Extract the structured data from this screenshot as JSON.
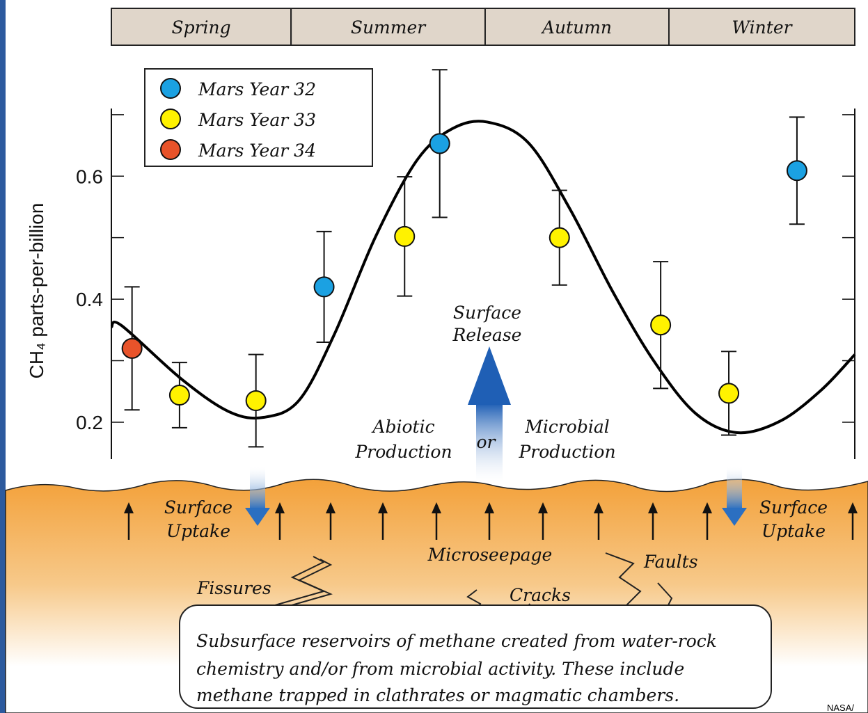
{
  "chart_data": {
    "type": "scatter",
    "seasons": [
      "Spring",
      "Summer",
      "Autumn",
      "Winter"
    ],
    "season_edges": [
      0,
      87,
      181,
      270,
      360
    ],
    "ylabel": "CH₄ parts-per-billion",
    "xlim": [
      0,
      360
    ],
    "ylim": [
      0.14,
      0.71
    ],
    "yticks": [
      0.2,
      0.4,
      0.6
    ],
    "yminor": [
      0.3,
      0.5,
      0.7
    ],
    "series": [
      {
        "name": "Mars Year 32",
        "color": "#1ba1e2",
        "x": [
          103,
          159,
          332
        ],
        "values": [
          0.42,
          0.653,
          0.609
        ],
        "errors": [
          0.09,
          0.12,
          0.087
        ]
      },
      {
        "name": "Mars Year 33",
        "color": "#fff200",
        "x": [
          33,
          70,
          142,
          217,
          266,
          299
        ],
        "values": [
          0.244,
          0.235,
          0.502,
          0.5,
          0.358,
          0.247
        ],
        "errors": [
          0.053,
          0.075,
          0.097,
          0.077,
          0.103,
          0.068
        ]
      },
      {
        "name": "Mars Year 34",
        "color": "#e8532a",
        "x": [
          10
        ],
        "values": [
          0.32
        ],
        "errors": [
          0.1
        ]
      }
    ],
    "fit": {
      "type": "line",
      "color": "#000000",
      "x": [
        0,
        5,
        34,
        57,
        74,
        91,
        108,
        128,
        148,
        165,
        182,
        202,
        222,
        243,
        263,
        283,
        303,
        324,
        344,
        360
      ],
      "values": [
        0.355,
        0.357,
        0.27,
        0.217,
        0.208,
        0.236,
        0.343,
        0.502,
        0.626,
        0.677,
        0.688,
        0.654,
        0.547,
        0.411,
        0.298,
        0.214,
        0.183,
        0.202,
        0.253,
        0.31
      ]
    }
  },
  "annotations": {
    "surface_release": [
      "Surface",
      "Release"
    ],
    "abiotic": [
      "Abiotic",
      "Production"
    ],
    "or": "or",
    "microbial": [
      "Microbial",
      "Production"
    ],
    "uptake_left": [
      "Surface",
      "Uptake"
    ],
    "uptake_right": [
      "Surface",
      "Uptake"
    ],
    "microseepage": "Microseepage",
    "fissures": "Fissures",
    "cracks": "Cracks",
    "faults": "Faults"
  },
  "reservoir_note": [
    "Subsurface reservoirs of methane created from water-rock",
    "chemistry and/or from microbial activity. These include",
    "methane trapped in clathrates or magmatic chambers."
  ],
  "credit": "NASA/"
}
